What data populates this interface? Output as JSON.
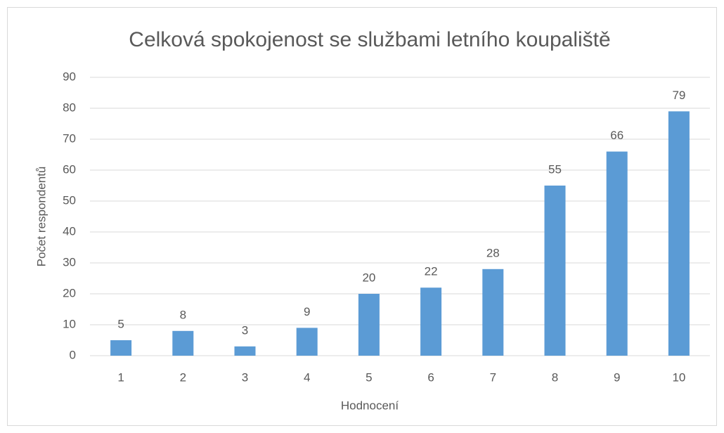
{
  "chart_data": {
    "type": "bar",
    "title": "Celková spokojenost se službami letního koupaliště",
    "x_label": "Hodnocení",
    "y_label": "Počet respondentů",
    "categories": [
      "1",
      "2",
      "3",
      "4",
      "5",
      "6",
      "7",
      "8",
      "9",
      "10"
    ],
    "values": [
      5,
      8,
      3,
      9,
      20,
      22,
      28,
      55,
      66,
      79
    ],
    "color": "#5b9bd5",
    "ylim": [
      0,
      90
    ],
    "yticks": [
      0,
      10,
      20,
      30,
      40,
      50,
      60,
      70,
      80,
      90
    ],
    "grid": true,
    "data_labels": true
  }
}
